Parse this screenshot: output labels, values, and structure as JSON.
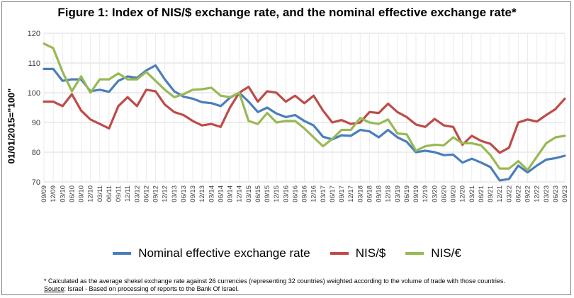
{
  "figure": {
    "title": "Figure 1: Index of NIS/$ exchange rate, and the nominal effective exchange rate*",
    "footnote": "* Calculated as the average shekel exchange rate against 26 currencies (representing 32 countries) weighted according to the volume of trade with those countries.",
    "source_label": "Source",
    "source_text": ": Israel -  Based on processing of reports to the Bank Of Israel."
  },
  "chart_data": {
    "type": "line",
    "title": "Figure 1: Index of NIS/$ exchange rate, and the nominal effective exchange rate*",
    "xlabel": "",
    "ylabel": "01/01/2015=\"100\"",
    "ylim": [
      70,
      120
    ],
    "yticks": [
      70,
      80,
      90,
      100,
      110,
      120
    ],
    "grid": true,
    "legend_position": "bottom",
    "categories": [
      "09/09",
      "12/09",
      "03/10",
      "06/10",
      "09/10",
      "12/10",
      "03/11",
      "06/11",
      "09/11",
      "12/11",
      "03/12",
      "06/12",
      "09/12",
      "12/12",
      "03/13",
      "06/13",
      "09/13",
      "12/13",
      "03/14",
      "06/14",
      "09/14",
      "12/14",
      "03/15",
      "06/15",
      "09/15",
      "12/15",
      "03/16",
      "06/16",
      "09/16",
      "12/16",
      "03/17",
      "06/17",
      "09/17",
      "12/17",
      "03/18",
      "06/18",
      "09/18",
      "12/18",
      "03/19",
      "06/19",
      "09/19",
      "12/19",
      "03/20",
      "06/20",
      "09/20",
      "12/20",
      "03/21",
      "06/21",
      "09/21",
      "12/21",
      "03/22",
      "06/22",
      "09/22",
      "12/22",
      "03/23",
      "06/23",
      "09/23"
    ],
    "series": [
      {
        "name": "Nominal effective exchange rate",
        "color": "#4a7ebb",
        "values": [
          108,
          108,
          104,
          104.5,
          104.5,
          100.5,
          101,
          100.3,
          104,
          105.5,
          105,
          107.5,
          109.2,
          104.5,
          100.5,
          98.7,
          98,
          96.8,
          96.5,
          95.5,
          98.3,
          100,
          97,
          93.5,
          95,
          93,
          91.8,
          92.5,
          90.5,
          89,
          85.2,
          84.3,
          85.7,
          85.5,
          87.5,
          87,
          85,
          87.5,
          85,
          83.5,
          80,
          80.5,
          80,
          79,
          79.2,
          76.5,
          77.8,
          76.5,
          75,
          70.5,
          71,
          75.5,
          73.2,
          75.5,
          77.5,
          78,
          78.8
        ]
      },
      {
        "name": "NIS/$",
        "color": "#be4b48",
        "values": [
          97,
          97,
          95.5,
          99.5,
          94,
          91,
          89.5,
          88,
          95.5,
          98.5,
          95.5,
          101,
          100.5,
          96,
          93.5,
          92.5,
          90.5,
          89,
          89.5,
          88.5,
          95,
          100,
          102,
          97,
          100.5,
          100,
          97,
          99,
          96.5,
          99,
          94,
          90,
          90.8,
          89.5,
          90,
          93.5,
          93.2,
          96.3,
          93.5,
          91.8,
          89.3,
          88.5,
          91.2,
          89,
          88.5,
          82.5,
          85.5,
          83.8,
          82.8,
          79.8,
          81.5,
          90,
          91,
          90.3,
          92.5,
          94.5,
          98
        ]
      },
      {
        "name": "NIS/€",
        "color": "#98b954",
        "values": [
          116.5,
          115,
          107,
          100.5,
          105.5,
          100,
          104.5,
          104.5,
          106.5,
          104.5,
          104.5,
          107,
          104,
          101,
          98.5,
          99.5,
          101,
          101.2,
          101.7,
          99,
          98.5,
          100,
          90.5,
          89.5,
          93.2,
          90,
          90.5,
          90.5,
          88,
          85,
          82,
          84.5,
          87.5,
          87.5,
          91.5,
          90,
          89.5,
          91,
          86.3,
          86,
          80.5,
          82,
          82.5,
          82.3,
          85,
          83,
          83,
          82.3,
          79,
          74.5,
          74.5,
          77,
          74,
          78.5,
          83,
          85,
          85.5
        ]
      }
    ]
  }
}
